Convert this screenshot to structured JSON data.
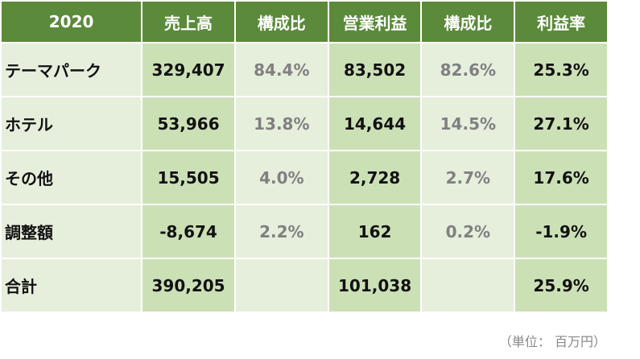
{
  "header": [
    "2020",
    "売上高",
    "構成比",
    "営業利益",
    "構成比",
    "利益率"
  ],
  "rows": [
    {
      "label": "テーマパーク",
      "sales": "329,407",
      "sales_share": "84.4%",
      "op": "83,502",
      "op_share": "82.6%",
      "margin": "25.3%"
    },
    {
      "label": "ホテル",
      "sales": "53,966",
      "sales_share": "13.8%",
      "op": "14,644",
      "op_share": "14.5%",
      "margin": "27.1%"
    },
    {
      "label": "その他",
      "sales": "15,505",
      "sales_share": "4.0%",
      "op": "2,728",
      "op_share": "2.7%",
      "margin": "17.6%"
    },
    {
      "label": "調整額",
      "sales": "-8,674",
      "sales_share": "2.2%",
      "op": "162",
      "op_share": "0.2%",
      "margin": "-1.9%"
    },
    {
      "label": "合計",
      "sales": "390,205",
      "sales_share": "",
      "op": "101,038",
      "op_share": "",
      "margin": "25.9%"
    }
  ],
  "unit_note": "（単位： 百万円）",
  "colors": {
    "header_bg": "#5b8a3a",
    "strong_cell": "#cce0b6",
    "light_cell": "#e6efdc",
    "muted_text": "#808080"
  }
}
